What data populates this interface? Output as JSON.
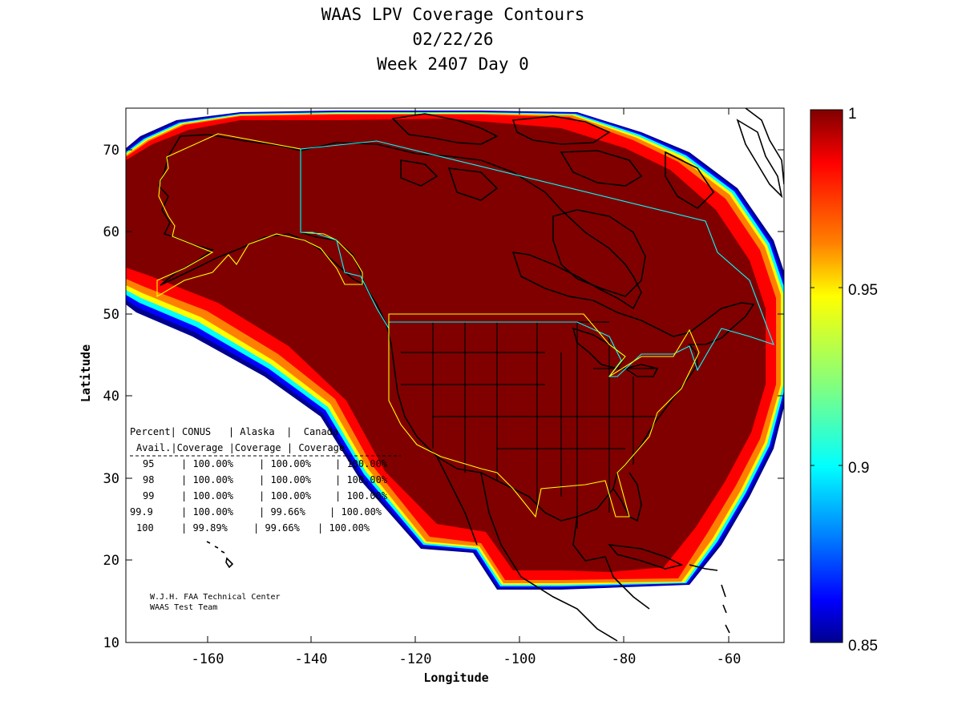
{
  "title": {
    "line1": "WAAS LPV Coverage Contours",
    "line2": "02/22/26",
    "line3": "Week 2407 Day 0"
  },
  "axes": {
    "xlabel": "Longitude",
    "ylabel": "Latitude",
    "xticks": [
      "-160",
      "-140",
      "-120",
      "-100",
      "-80",
      "-60"
    ],
    "yticks": [
      "10",
      "20",
      "30",
      "40",
      "50",
      "60",
      "70"
    ],
    "xlim": [
      -175,
      -50
    ],
    "ylim": [
      10,
      75
    ]
  },
  "colorbar": {
    "ticks": [
      "1",
      "0.95",
      "0.9",
      "0.85"
    ],
    "range": [
      0.85,
      1.0
    ],
    "colors": {
      "c100": "#800000",
      "c098": "#ff0000",
      "c096": "#ff8000",
      "c095": "#ffff00",
      "c093": "#80ff80",
      "c090": "#00ffff",
      "c088": "#0080ff",
      "c086": "#0000ff",
      "c085": "#00008f"
    }
  },
  "coverage_table": {
    "header1": [
      "Percent",
      "CONUS",
      "Alaska",
      "Canada"
    ],
    "header2": [
      "Avail.",
      "Coverage",
      "Coverage",
      "Coverage"
    ],
    "rows": [
      [
        "95",
        "100.00%",
        "100.00%",
        "100.00%"
      ],
      [
        "98",
        "100.00%",
        "100.00%",
        "100.00%"
      ],
      [
        "99",
        "100.00%",
        "100.00%",
        "100.00%"
      ],
      [
        "99.9",
        "100.00%",
        "99.66%",
        "100.00%"
      ],
      [
        "100",
        "99.89%",
        "99.66%",
        "100.00%"
      ]
    ]
  },
  "credit": {
    "line1": "W.J.H. FAA Technical Center",
    "line2": "WAAS Test Team"
  },
  "colors": {
    "coverage_dark": "#800000",
    "region_outline_yellow": "#ffff00",
    "region_outline_cyan": "#00ffff",
    "coastline": "#000000"
  }
}
